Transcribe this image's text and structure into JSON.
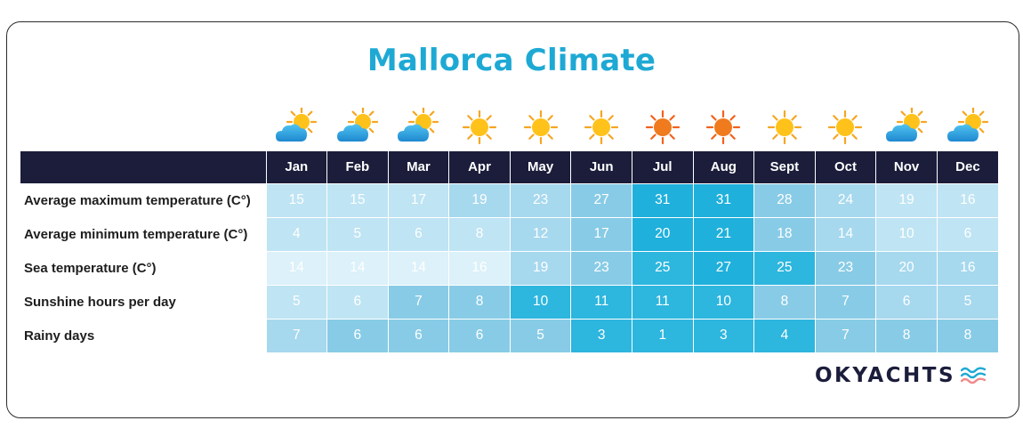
{
  "title": "Mallorca Climate",
  "months": [
    "Jan",
    "Feb",
    "Mar",
    "Apr",
    "May",
    "Jun",
    "Jul",
    "Aug",
    "Sept",
    "Oct",
    "Nov",
    "Dec"
  ],
  "weather_icons": [
    "sun-cloud-icon",
    "sun-cloud-icon",
    "sun-cloud-icon",
    "sun-icon",
    "sun-icon",
    "sun-icon",
    "hot-sun-icon",
    "hot-sun-icon",
    "sun-icon",
    "sun-icon",
    "sun-cloud-icon",
    "sun-cloud-icon"
  ],
  "rows": [
    {
      "label": "Average maximum temperature (C°)",
      "values": [
        "15",
        "15",
        "17",
        "19",
        "23",
        "27",
        "31",
        "31",
        "28",
        "24",
        "19",
        "16"
      ]
    },
    {
      "label": "Average minimum temperature (C°)",
      "values": [
        "4",
        "5",
        "6",
        "8",
        "12",
        "17",
        "20",
        "21",
        "18",
        "14",
        "10",
        "6"
      ]
    },
    {
      "label": "Sea temperature (C°)",
      "values": [
        "14",
        "14",
        "14",
        "16",
        "19",
        "23",
        "25",
        "27",
        "25",
        "23",
        "20",
        "16"
      ]
    },
    {
      "label": "Sunshine hours per day",
      "values": [
        "5",
        "6",
        "7",
        "8",
        "10",
        "11",
        "11",
        "10",
        "8",
        "7",
        "6",
        "5"
      ]
    },
    {
      "label": "Rainy days",
      "values": [
        "7",
        "6",
        "6",
        "6",
        "5",
        "3",
        "1",
        "3",
        "4",
        "7",
        "8",
        "8"
      ]
    }
  ],
  "cell_levels": [
    [
      1,
      1,
      1,
      2,
      2,
      3,
      5,
      5,
      3,
      2,
      1,
      1
    ],
    [
      1,
      1,
      1,
      1,
      2,
      3,
      5,
      5,
      3,
      2,
      1,
      1
    ],
    [
      0,
      0,
      0,
      0,
      2,
      3,
      4,
      5,
      4,
      3,
      2,
      2
    ],
    [
      1,
      1,
      3,
      3,
      4,
      4,
      4,
      4,
      3,
      3,
      2,
      2
    ],
    [
      2,
      3,
      3,
      3,
      3,
      4,
      4,
      4,
      4,
      3,
      3,
      3
    ]
  ],
  "palette": [
    "#dcf1f9",
    "#bfe4f3",
    "#a6d8ee",
    "#88cbe6",
    "#2db6de",
    "#1fb0dc"
  ],
  "colors": {
    "title": "#1ea9d4",
    "header_bg": "#1b1d3b",
    "logo_text": "#1b1d3b",
    "cell_text": "#ffffff"
  },
  "logo": {
    "text": "OKYACHTS",
    "waves_icon": "waves-icon"
  }
}
